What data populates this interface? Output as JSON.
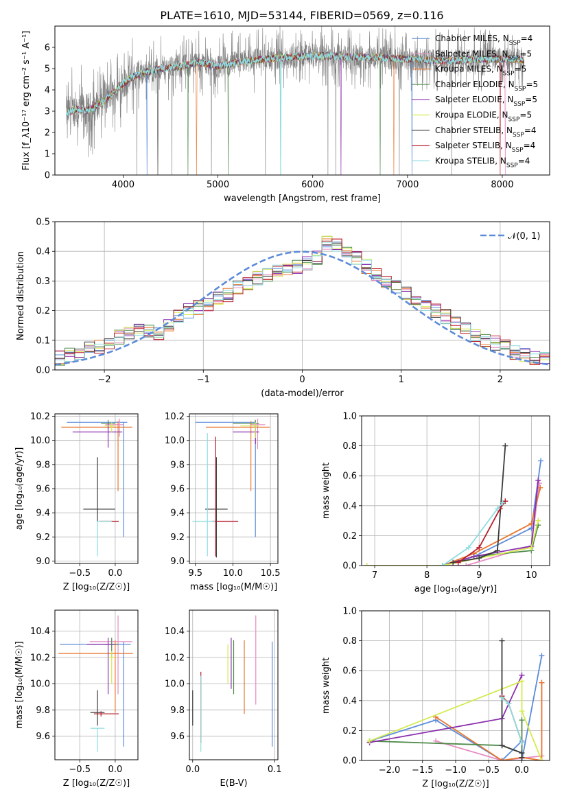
{
  "title": "PLATE=1610, MJD=53144, FIBERID=0569, z=0.116",
  "colors": {
    "Chabrier MILES": "#5b8bd9",
    "Salpeter MILES": "#e58cc3",
    "Kroupa MILES": "#e8772e",
    "Chabrier ELODIE": "#4f8a4a",
    "Salpeter ELODIE": "#8b2fae",
    "Kroupa ELODIE": "#d4ea4f",
    "Chabrier STELIB": "#3a3a3a",
    "Salpeter STELIB": "#b51d2a",
    "Kroupa STELIB": "#8fdde0",
    "data": "#808080",
    "gauss": "#5b8bd9",
    "grid": "#b0b0b0"
  },
  "chart_data": [
    {
      "type": "line",
      "id": "spectrum",
      "xlabel": "wavelength [Angstrom, rest frame]",
      "ylabel": "Flux [f_λ10⁻¹⁷ erg cm⁻² s⁻¹ A⁻¹]",
      "xlim": [
        3280,
        8500
      ],
      "ylim": [
        0,
        7
      ],
      "xticks": [
        4000,
        5000,
        6000,
        7000,
        8000
      ],
      "yticks": [
        0,
        1,
        2,
        3,
        4,
        5,
        6
      ],
      "grid": false,
      "legend_placement": "right",
      "continuum_x": [
        3400,
        3500,
        3600,
        3700,
        3800,
        3900,
        4000,
        4100,
        4200,
        4400,
        4600,
        4800,
        5000,
        5200,
        5400,
        5600,
        5800,
        6000,
        6200,
        6400,
        6600,
        6800,
        7000,
        7200,
        7400,
        7600,
        7800,
        8000,
        8230
      ],
      "continuum_y": [
        2.9,
        3.1,
        3.0,
        3.2,
        3.5,
        3.9,
        4.3,
        4.6,
        4.8,
        5.0,
        5.1,
        5.3,
        5.1,
        5.3,
        5.4,
        5.5,
        5.55,
        5.6,
        5.6,
        5.55,
        5.55,
        5.5,
        5.45,
        5.4,
        5.35,
        5.4,
        5.45,
        5.45,
        5.4
      ],
      "series": [
        {
          "name": "Chabrier MILES",
          "nssp": "4"
        },
        {
          "name": "Salpeter MILES",
          "nssp": "5"
        },
        {
          "name": "Kroupa MILES",
          "nssp": "5"
        },
        {
          "name": "Chabrier ELODIE",
          "nssp": "5"
        },
        {
          "name": "Salpeter ELODIE",
          "nssp": "5"
        },
        {
          "name": "Kroupa ELODIE",
          "nssp": "5"
        },
        {
          "name": "Chabrier STELIB",
          "nssp": "4"
        },
        {
          "name": "Salpeter STELIB",
          "nssp": "4"
        },
        {
          "name": "Kroupa STELIB",
          "nssp": "4"
        }
      ]
    },
    {
      "type": "line",
      "id": "residuals",
      "xlabel": "(data-model)/error",
      "ylabel": "Normed distribution",
      "xlim": [
        -2.5,
        2.5
      ],
      "ylim": [
        0,
        0.5
      ],
      "xticks": [
        -2,
        -1,
        0,
        1,
        2
      ],
      "yticks": [
        0.0,
        0.1,
        0.2,
        0.3,
        0.4,
        0.5
      ],
      "grid": true,
      "legend_placement": "top-right",
      "legend_label": "𝒩(0, 1)",
      "bin_width": 0.1,
      "base_hist": [
        0.03,
        0.025,
        0.03,
        0.04,
        0.05,
        0.06,
        0.07,
        0.08,
        0.09,
        0.11,
        0.12,
        0.13,
        0.13,
        0.12,
        0.15,
        0.18,
        0.2,
        0.21,
        0.22,
        0.24,
        0.25,
        0.28,
        0.29,
        0.31,
        0.32,
        0.33,
        0.34,
        0.35,
        0.36,
        0.38,
        0.43,
        0.42,
        0.4,
        0.38,
        0.35,
        0.32,
        0.3,
        0.28,
        0.26,
        0.24,
        0.22,
        0.2,
        0.18,
        0.16,
        0.14,
        0.12,
        0.1,
        0.09,
        0.08,
        0.06,
        0.05,
        0.04,
        0.04,
        0.035,
        0.03,
        0.03
      ]
    },
    {
      "type": "scatter",
      "id": "age-vs-Z",
      "xlabel": "Z [log₁₀(Z/Z☉)]",
      "ylabel": "age  [log₁₀(age/yr)]",
      "xlim": [
        -0.85,
        0.32
      ],
      "ylim": [
        8.98,
        10.22
      ],
      "xticks": [
        -0.5,
        0.0
      ],
      "yticks": [
        9.0,
        9.2,
        9.4,
        9.6,
        9.8,
        10.0,
        10.2
      ],
      "grid": true,
      "points": [
        {
          "series": "Chabrier MILES",
          "x": 0.12,
          "y": 10.15,
          "xerr": [
            0.8,
            0.05
          ],
          "yerr": [
            0.95,
            0.0
          ]
        },
        {
          "series": "Salpeter MILES",
          "x": 0.06,
          "y": 10.13,
          "xerr": [
            0.2,
            0.05
          ],
          "yerr": [
            0.1,
            0.05
          ]
        },
        {
          "series": "Kroupa MILES",
          "x": 0.04,
          "y": 10.11,
          "xerr": [
            0.8,
            0.2
          ],
          "yerr": [
            0.53,
            0.05
          ]
        },
        {
          "series": "Chabrier ELODIE",
          "x": -0.1,
          "y": 10.14,
          "xerr": [
            0.1,
            0.1
          ],
          "yerr": [
            0.05,
            0.03
          ]
        },
        {
          "series": "Salpeter ELODIE",
          "x": -0.1,
          "y": 10.07,
          "xerr": [
            0.5,
            0.2
          ],
          "yerr": [
            0.13,
            0.08
          ]
        },
        {
          "series": "Kroupa ELODIE",
          "x": -0.05,
          "y": 10.12,
          "xerr": [
            0.1,
            0.05
          ],
          "yerr": [
            0.05,
            0.03
          ]
        },
        {
          "series": "Chabrier STELIB",
          "x": -0.25,
          "y": 9.43,
          "xerr": [
            0.2,
            0.25
          ],
          "yerr": [
            0.1,
            0.43
          ]
        },
        {
          "series": "Salpeter STELIB",
          "x": -0.2,
          "y": 9.33,
          "xerr": [
            0.02,
            0.25
          ],
          "yerr": [
            0.0,
            0.0
          ]
        },
        {
          "series": "Kroupa STELIB",
          "x": -0.25,
          "y": 9.33,
          "xerr": [
            0.0,
            0.2
          ],
          "yerr": [
            0.29,
            0.0
          ]
        }
      ]
    },
    {
      "type": "scatter",
      "id": "age-vs-mass",
      "xlabel": "mass [log₁₀(M/M☉)]",
      "ylabel": "",
      "xlim": [
        9.42,
        10.6
      ],
      "ylim": [
        8.98,
        10.22
      ],
      "xticks": [
        9.5,
        10.0,
        10.5
      ],
      "yticks": [
        9.0,
        9.2,
        9.4,
        9.6,
        9.8,
        10.0,
        10.2
      ],
      "grid": true,
      "points": [
        {
          "series": "Chabrier MILES",
          "x": 10.3,
          "y": 10.15,
          "xerr": [
            0.8,
            0.0
          ],
          "yerr": [
            0.95,
            0.0
          ]
        },
        {
          "series": "Salpeter MILES",
          "x": 10.33,
          "y": 10.13,
          "xerr": [
            0.1,
            0.1
          ],
          "yerr": [
            0.2,
            0.05
          ]
        },
        {
          "series": "Kroupa MILES",
          "x": 10.24,
          "y": 10.11,
          "xerr": [
            0.6,
            0.25
          ],
          "yerr": [
            0.53,
            0.05
          ]
        },
        {
          "series": "Chabrier ELODIE",
          "x": 10.3,
          "y": 10.14,
          "xerr": [
            0.3,
            0.05
          ],
          "yerr": [
            0.1,
            0.03
          ]
        },
        {
          "series": "Salpeter ELODIE",
          "x": 10.3,
          "y": 10.07,
          "xerr": [
            0.3,
            0.05
          ],
          "yerr": [
            0.1,
            0.05
          ]
        },
        {
          "series": "Kroupa ELODIE",
          "x": 10.3,
          "y": 10.12,
          "xerr": [
            0.2,
            0.05
          ],
          "yerr": [
            0.1,
            0.03
          ]
        },
        {
          "series": "Chabrier STELIB",
          "x": 9.78,
          "y": 9.43,
          "xerr": [
            0.15,
            0.15
          ],
          "yerr": [
            0.4,
            0.43
          ]
        },
        {
          "series": "Salpeter STELIB",
          "x": 9.77,
          "y": 9.33,
          "xerr": [
            0.05,
            0.3
          ],
          "yerr": [
            0.29,
            0.7
          ]
        },
        {
          "series": "Kroupa STELIB",
          "x": 9.66,
          "y": 9.33,
          "xerr": [
            0.2,
            0.1
          ],
          "yerr": [
            0.29,
            0.73
          ]
        }
      ]
    },
    {
      "type": "line",
      "id": "weight-vs-age",
      "xlabel": "age  [log₁₀(age/yr)]",
      "ylabel": "mass weight",
      "xlim": [
        6.75,
        10.35
      ],
      "ylim": [
        0,
        1
      ],
      "xticks": [
        7,
        8,
        9,
        10
      ],
      "yticks": [
        0.0,
        0.2,
        0.4,
        0.6,
        0.8,
        1.0
      ],
      "grid": true,
      "series": [
        {
          "name": "Chabrier MILES",
          "x": [
            8.3,
            8.9,
            10.0,
            10.18
          ],
          "y": [
            0.0,
            0.06,
            0.25,
            0.7
          ]
        },
        {
          "name": "Salpeter MILES",
          "x": [
            6.85,
            8.75,
            10.0,
            10.15
          ],
          "y": [
            0.0,
            0.0,
            0.13,
            0.55
          ]
        },
        {
          "name": "Kroupa MILES",
          "x": [
            8.3,
            8.9,
            10.0,
            10.17
          ],
          "y": [
            0.0,
            0.08,
            0.28,
            0.52
          ]
        },
        {
          "name": "Chabrier ELODIE",
          "x": [
            8.9,
            10.0,
            10.13
          ],
          "y": [
            0.06,
            0.1,
            0.27
          ]
        },
        {
          "name": "Salpeter ELODIE",
          "x": [
            8.3,
            8.9,
            10.0,
            10.13
          ],
          "y": [
            0.0,
            0.06,
            0.13,
            0.57
          ]
        },
        {
          "name": "Kroupa ELODIE",
          "x": [
            6.85,
            8.3,
            10.0,
            10.13
          ],
          "y": [
            0.0,
            0.0,
            0.12,
            0.3
          ]
        },
        {
          "name": "Chabrier STELIB",
          "x": [
            8.5,
            9.0,
            9.35,
            9.5
          ],
          "y": [
            0.02,
            0.05,
            0.1,
            0.8
          ]
        },
        {
          "name": "Salpeter STELIB",
          "x": [
            8.6,
            9.0,
            9.4,
            9.5
          ],
          "y": [
            0.02,
            0.12,
            0.38,
            0.43
          ]
        },
        {
          "name": "Kroupa STELIB",
          "x": [
            8.3,
            8.8,
            9.35,
            9.45
          ],
          "y": [
            0.0,
            0.12,
            0.38,
            0.42
          ]
        }
      ]
    },
    {
      "type": "scatter",
      "id": "mass-vs-Z",
      "xlabel": "Z [log₁₀(Z/Z☉)]",
      "ylabel": "mass [log₁₀(M/M☉)]",
      "xlim": [
        -0.85,
        0.32
      ],
      "ylim": [
        9.42,
        10.56
      ],
      "xticks": [
        -0.5,
        0.0
      ],
      "yticks": [
        9.6,
        9.8,
        10.0,
        10.2,
        10.4
      ],
      "grid": true,
      "points": [
        {
          "series": "Chabrier MILES",
          "x": 0.12,
          "y": 10.3,
          "xerr": [
            0.9,
            0.1
          ],
          "yerr": [
            0.78,
            0.02
          ]
        },
        {
          "series": "Salpeter MILES",
          "x": 0.04,
          "y": 10.32,
          "xerr": [
            0.4,
            0.2
          ],
          "yerr": [
            0.4,
            0.2
          ]
        },
        {
          "series": "Kroupa MILES",
          "x": 0.0,
          "y": 10.23,
          "xerr": [
            0.8,
            0.25
          ],
          "yerr": [
            0.45,
            0.1
          ]
        },
        {
          "series": "Chabrier ELODIE",
          "x": -0.05,
          "y": 10.3,
          "xerr": [
            0.1,
            0.1
          ],
          "yerr": [
            0.1,
            0.05
          ]
        },
        {
          "series": "Salpeter ELODIE",
          "x": -0.1,
          "y": 10.3,
          "xerr": [
            0.3,
            0.1
          ],
          "yerr": [
            0.38,
            0.05
          ]
        },
        {
          "series": "Kroupa ELODIE",
          "x": -0.05,
          "y": 10.2,
          "xerr": [
            0.05,
            0.05
          ],
          "yerr": [
            0.2,
            0.05
          ]
        },
        {
          "series": "Chabrier STELIB",
          "x": -0.25,
          "y": 9.78,
          "xerr": [
            0.1,
            0.1
          ],
          "yerr": [
            0.1,
            0.17
          ]
        },
        {
          "series": "Salpeter STELIB",
          "x": -0.2,
          "y": 9.77,
          "xerr": [
            0.1,
            0.25
          ],
          "yerr": [
            0.02,
            0.02
          ]
        },
        {
          "series": "Kroupa STELIB",
          "x": -0.25,
          "y": 9.66,
          "xerr": [
            0.1,
            0.1
          ],
          "yerr": [
            0.18,
            0.0
          ]
        }
      ]
    },
    {
      "type": "scatter",
      "id": "mass-vs-EBV",
      "xlabel": "E(B-V)",
      "ylabel": "",
      "xlim": [
        -0.004,
        0.104
      ],
      "ylim": [
        9.42,
        10.56
      ],
      "xticks": [
        0.0,
        0.1
      ],
      "yticks": [
        9.6,
        9.8,
        10.0,
        10.2,
        10.4
      ],
      "grid": true,
      "points": [
        {
          "series": "Chabrier MILES",
          "x": 0.097,
          "y": 10.3,
          "yerr": [
            0.78,
            0.02
          ]
        },
        {
          "series": "Salpeter MILES",
          "x": 0.077,
          "y": 10.32,
          "yerr": [
            0.48,
            0.2
          ]
        },
        {
          "series": "Kroupa MILES",
          "x": 0.063,
          "y": 10.23,
          "yerr": [
            0.46,
            0.1
          ]
        },
        {
          "series": "Chabrier ELODIE",
          "x": 0.05,
          "y": 10.3,
          "yerr": [
            0.38,
            0.03
          ]
        },
        {
          "series": "Salpeter ELODIE",
          "x": 0.047,
          "y": 10.3,
          "yerr": [
            0.34,
            0.05
          ]
        },
        {
          "series": "Kroupa ELODIE",
          "x": 0.043,
          "y": 10.2,
          "yerr": [
            0.2,
            0.1
          ]
        },
        {
          "series": "Chabrier STELIB",
          "x": 0.0,
          "y": 9.78,
          "yerr": [
            0.1,
            0.17
          ]
        },
        {
          "series": "Salpeter STELIB",
          "x": 0.01,
          "y": 9.77,
          "yerr": [
            0.22,
            0.32
          ]
        },
        {
          "series": "Kroupa STELIB",
          "x": 0.01,
          "y": 9.66,
          "yerr": [
            0.18,
            0.4
          ]
        }
      ]
    },
    {
      "type": "line",
      "id": "weight-vs-Z",
      "xlabel": "Z [log₁₀(Z/Z☉)]",
      "ylabel": "mass weight",
      "xlim": [
        -2.42,
        0.42
      ],
      "ylim": [
        0,
        1
      ],
      "xticks": [
        -2.0,
        -1.5,
        -1.0,
        -0.5,
        0.0
      ],
      "yticks": [
        0.0,
        0.2,
        0.4,
        0.6,
        0.8,
        1.0
      ],
      "grid": true,
      "series": [
        {
          "name": "Chabrier MILES",
          "x": [
            -2.3,
            -1.3,
            -0.3,
            0.0,
            0.0,
            0.3
          ],
          "y": [
            0.13,
            0.27,
            0.0,
            0.13,
            0.0,
            0.7
          ]
        },
        {
          "name": "Salpeter MILES",
          "x": [
            -1.3,
            -0.3,
            0.3,
            0.3
          ],
          "y": [
            0.13,
            0.0,
            0.03,
            0.52
          ]
        },
        {
          "name": "Kroupa MILES",
          "x": [
            -1.3,
            -0.3,
            0.0,
            0.3,
            0.3
          ],
          "y": [
            0.29,
            0.0,
            0.02,
            0.0,
            0.52
          ]
        },
        {
          "name": "Chabrier ELODIE",
          "x": [
            -2.3,
            -0.3,
            0.0,
            0.0
          ],
          "y": [
            0.13,
            0.1,
            0.05,
            0.27
          ]
        },
        {
          "name": "Salpeter ELODIE",
          "x": [
            -2.3,
            -0.3,
            -0.3,
            0.0
          ],
          "y": [
            0.12,
            0.28,
            0.28,
            0.57
          ]
        },
        {
          "name": "Kroupa ELODIE",
          "x": [
            -2.3,
            0.0,
            0.0,
            0.3
          ],
          "y": [
            0.13,
            0.53,
            0.33,
            0.0
          ]
        },
        {
          "name": "Chabrier STELIB",
          "x": [
            -0.3,
            -0.3,
            0.0,
            0.0
          ],
          "y": [
            0.8,
            0.1,
            0.05,
            0.02
          ]
        },
        {
          "name": "Salpeter STELIB",
          "x": [
            -0.3,
            -0.2,
            0.0
          ],
          "y": [
            0.43,
            0.38,
            0.12
          ]
        },
        {
          "name": "Kroupa STELIB",
          "x": [
            -0.3,
            -0.2,
            0.0
          ],
          "y": [
            0.42,
            0.38,
            0.12
          ]
        }
      ]
    }
  ]
}
